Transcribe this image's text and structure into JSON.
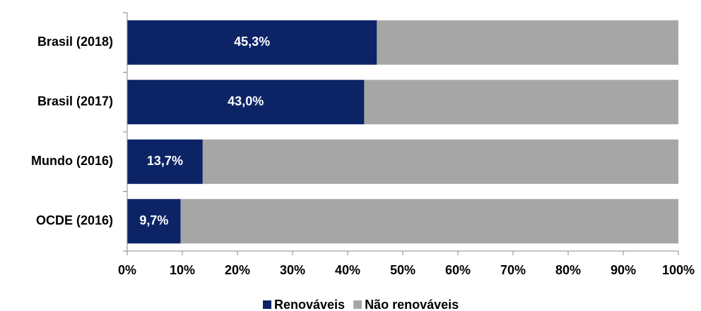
{
  "chart_data": {
    "type": "stacked-bar-horizontal",
    "categories": [
      "Brasil (2018)",
      "Brasil (2017)",
      "Mundo (2016)",
      "OCDE (2016)"
    ],
    "series": [
      {
        "name": "Renováveis",
        "color": "#0c2466",
        "values": [
          45.3,
          43.0,
          13.7,
          9.7
        ],
        "value_labels": [
          "45,3%",
          "43,0%",
          "13,7%",
          "9,7%"
        ]
      },
      {
        "name": "Não renováveis",
        "color": "#a6a6a6",
        "values": [
          54.7,
          57.0,
          86.3,
          90.3
        ]
      }
    ],
    "xlim": [
      0,
      100
    ],
    "xticks": [
      {
        "value": 0,
        "label": "0%"
      },
      {
        "value": 10,
        "label": "10%"
      },
      {
        "value": 20,
        "label": "20%"
      },
      {
        "value": 30,
        "label": "30%"
      },
      {
        "value": 40,
        "label": "40%"
      },
      {
        "value": 50,
        "label": "50%"
      },
      {
        "value": 60,
        "label": "60%"
      },
      {
        "value": 70,
        "label": "70%"
      },
      {
        "value": 80,
        "label": "80%"
      },
      {
        "value": 90,
        "label": "90%"
      },
      {
        "value": 100,
        "label": "100%"
      }
    ],
    "legend": "bottom"
  }
}
